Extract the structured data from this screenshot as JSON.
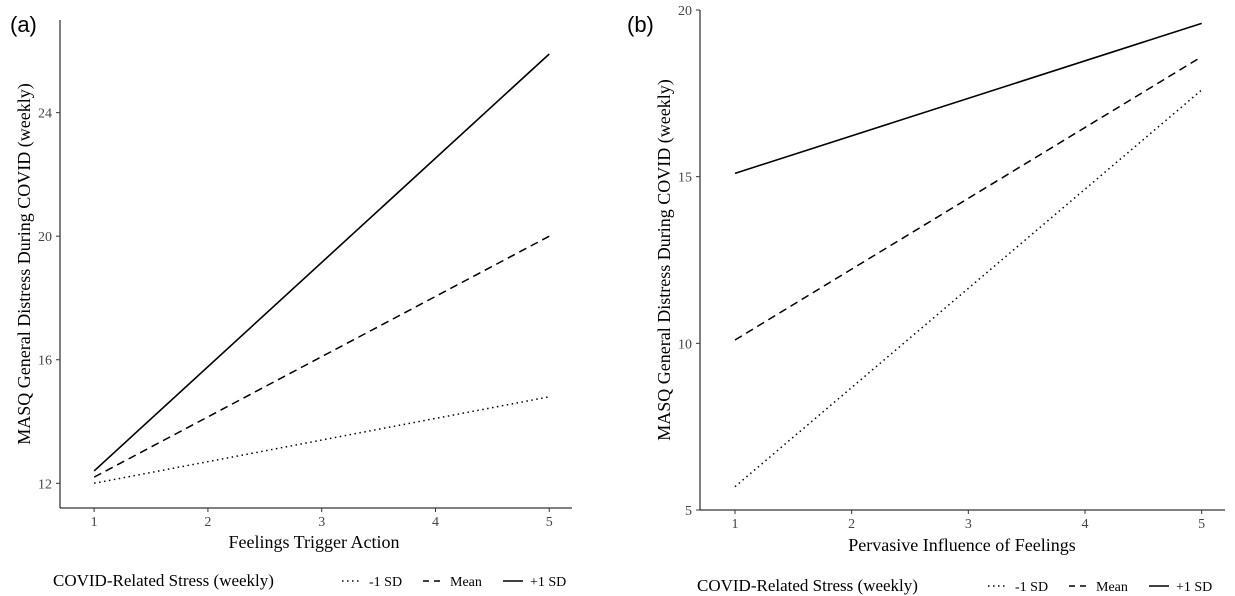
{
  "chart_data": [
    {
      "type": "line",
      "panel_label": "(a)",
      "xlabel": "Feelings Trigger Action",
      "ylabel": "MASQ General Distress During COVID (weekly)",
      "xlim": [
        0.7,
        5.2
      ],
      "ylim": [
        11.2,
        27.0
      ],
      "x_ticks": [
        1,
        2,
        3,
        4,
        5
      ],
      "y_ticks": [
        12,
        16,
        20,
        24
      ],
      "grid": false,
      "legend_position": "bottom",
      "legend_title": "COVID-Related Stress (weekly)",
      "series": [
        {
          "name": "-1 SD",
          "style": "dotted",
          "x": [
            1,
            5
          ],
          "y": [
            12.0,
            14.8
          ]
        },
        {
          "name": "Mean",
          "style": "dashed",
          "x": [
            1,
            5
          ],
          "y": [
            12.2,
            20.0
          ]
        },
        {
          "name": "+1 SD",
          "style": "solid",
          "x": [
            1,
            5
          ],
          "y": [
            12.4,
            25.9
          ]
        }
      ]
    },
    {
      "type": "line",
      "panel_label": "(b)",
      "xlabel": "Pervasive Influence of Feelings",
      "ylabel": "MASQ General Distress During COVID (weekly)",
      "xlim": [
        0.7,
        5.2
      ],
      "ylim": [
        5.0,
        20.0
      ],
      "x_ticks": [
        1,
        2,
        3,
        4,
        5
      ],
      "y_ticks": [
        5,
        10,
        15,
        20
      ],
      "grid": false,
      "legend_position": "bottom",
      "legend_title": "COVID-Related Stress (weekly)",
      "series": [
        {
          "name": "-1 SD",
          "style": "dotted",
          "x": [
            1,
            5
          ],
          "y": [
            5.7,
            17.6
          ]
        },
        {
          "name": "Mean",
          "style": "dashed",
          "x": [
            1,
            5
          ],
          "y": [
            10.1,
            18.6
          ]
        },
        {
          "name": "+1 SD",
          "style": "solid",
          "x": [
            1,
            5
          ],
          "y": [
            15.1,
            19.6
          ]
        }
      ]
    }
  ]
}
